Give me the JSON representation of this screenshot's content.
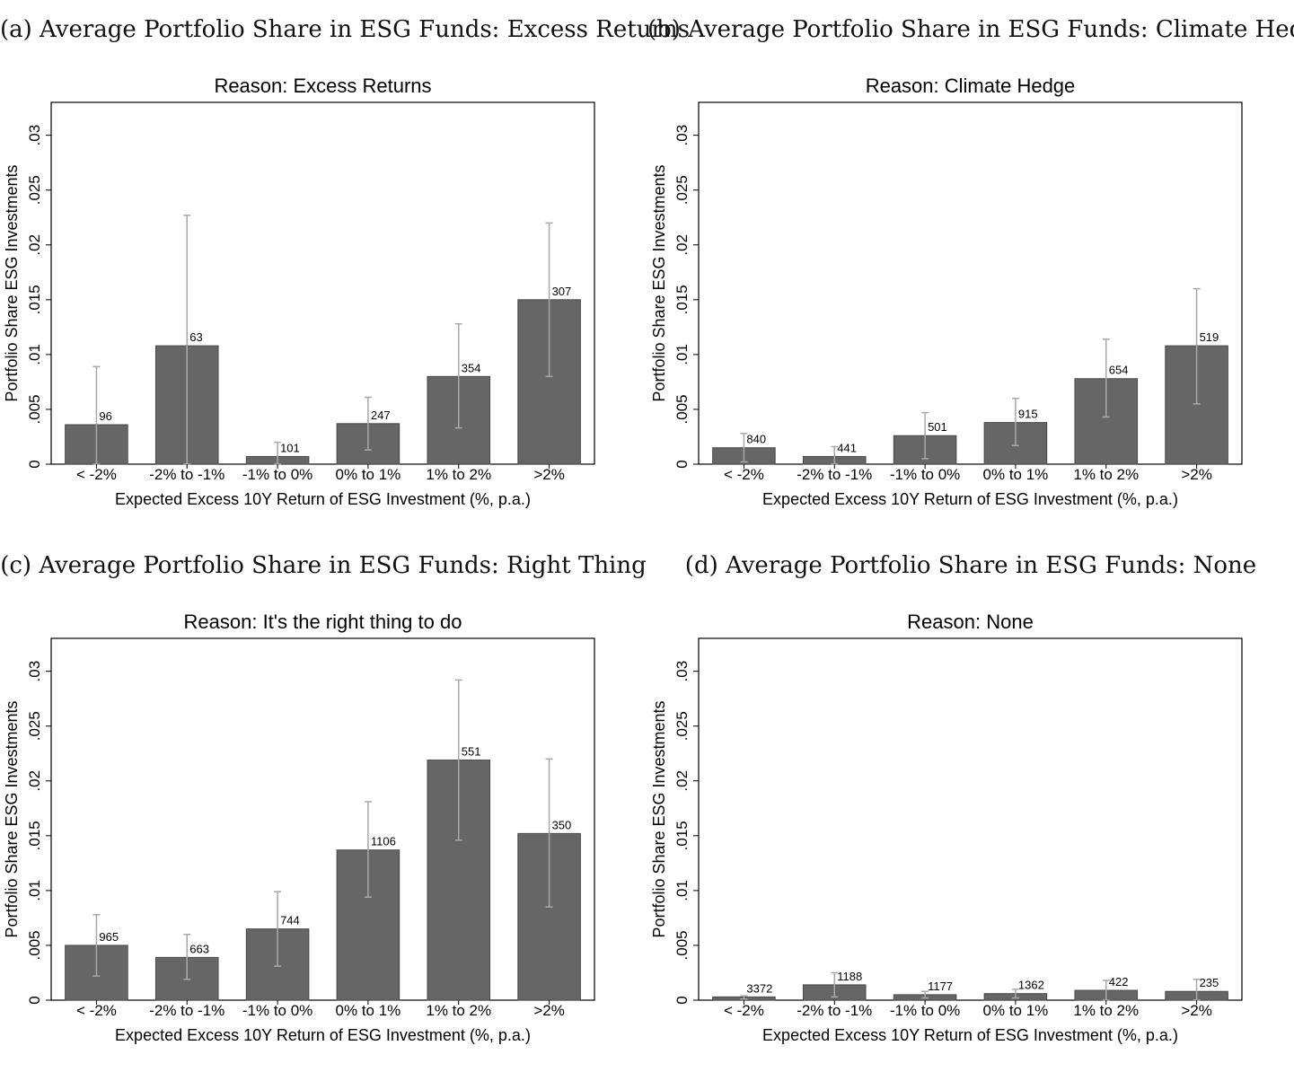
{
  "colors": {
    "bar": "#666666",
    "bar_edge": "#4a4a4a",
    "error_bar": "#a8a8a8",
    "frame": "#000000"
  },
  "chart_data": [
    {
      "type": "bar",
      "caption": "(a)  Average Portfolio Share in ESG Funds: Excess Returns",
      "title": "Reason: Excess Returns",
      "xlabel": "Expected Excess 10Y Return of ESG Investment (%, p.a.)",
      "ylabel": "Portfolio Share ESG Investments",
      "ylim": [
        0,
        0.033
      ],
      "yticks": [
        "0",
        ".005",
        ".01",
        ".015",
        ".02",
        ".025",
        ".03"
      ],
      "ytick_values": [
        0,
        0.005,
        0.01,
        0.015,
        0.02,
        0.025,
        0.03
      ],
      "categories": [
        "< -2%",
        "-2% to -1%",
        "-1% to 0%",
        "0% to 1%",
        "1% to 2%",
        ">2%"
      ],
      "values": [
        0.0036,
        0.0108,
        0.0007,
        0.0037,
        0.008,
        0.015
      ],
      "ci_low": [
        0.0,
        0.0,
        0.0,
        0.0013,
        0.0033,
        0.008
      ],
      "ci_high": [
        0.0089,
        0.0227,
        0.002,
        0.0061,
        0.0128,
        0.022
      ],
      "n_labels": [
        "96",
        "63",
        "101",
        "247",
        "354",
        "307"
      ]
    },
    {
      "type": "bar",
      "caption": "(b)  Average Portfolio Share in ESG Funds: Climate Hedge",
      "title": "Reason: Climate Hedge",
      "xlabel": "Expected Excess 10Y Return of ESG Investment (%, p.a.)",
      "ylabel": "Portfolio Share ESG Investments",
      "ylim": [
        0,
        0.033
      ],
      "yticks": [
        "0",
        ".005",
        ".01",
        ".015",
        ".02",
        ".025",
        ".03"
      ],
      "ytick_values": [
        0,
        0.005,
        0.01,
        0.015,
        0.02,
        0.025,
        0.03
      ],
      "categories": [
        "< -2%",
        "-2% to -1%",
        "-1% to 0%",
        "0% to 1%",
        "1% to 2%",
        ">2%"
      ],
      "values": [
        0.0015,
        0.0007,
        0.0026,
        0.0038,
        0.0078,
        0.0108
      ],
      "ci_low": [
        0.0002,
        0.0,
        0.0005,
        0.0017,
        0.0043,
        0.0055
      ],
      "ci_high": [
        0.0028,
        0.0016,
        0.0047,
        0.006,
        0.0114,
        0.016
      ],
      "n_labels": [
        "840",
        "441",
        "501",
        "915",
        "654",
        "519"
      ]
    },
    {
      "type": "bar",
      "caption": "(c)  Average Portfolio Share in ESG Funds: Right Thing",
      "title": "Reason: It's the right thing to do",
      "xlabel": "Expected Excess 10Y Return of ESG Investment (%, p.a.)",
      "ylabel": "Portfolio Share ESG Investments",
      "ylim": [
        0,
        0.033
      ],
      "yticks": [
        "0",
        ".005",
        ".01",
        ".015",
        ".02",
        ".025",
        ".03"
      ],
      "ytick_values": [
        0,
        0.005,
        0.01,
        0.015,
        0.02,
        0.025,
        0.03
      ],
      "categories": [
        "< -2%",
        "-2% to -1%",
        "-1% to 0%",
        "0% to 1%",
        "1% to 2%",
        ">2%"
      ],
      "values": [
        0.005,
        0.0039,
        0.0065,
        0.0137,
        0.0219,
        0.0152
      ],
      "ci_low": [
        0.0022,
        0.0019,
        0.0031,
        0.0094,
        0.0146,
        0.0085
      ],
      "ci_high": [
        0.0078,
        0.006,
        0.0099,
        0.0181,
        0.0292,
        0.022
      ],
      "n_labels": [
        "965",
        "663",
        "744",
        "1106",
        "551",
        "350"
      ]
    },
    {
      "type": "bar",
      "caption": "(d)  Average Portfolio Share in ESG Funds: None",
      "title": "Reason: None",
      "xlabel": "Expected Excess 10Y Return of ESG Investment (%, p.a.)",
      "ylabel": "Portfolio Share ESG Investments",
      "ylim": [
        0,
        0.033
      ],
      "yticks": [
        "0",
        ".005",
        ".01",
        ".015",
        ".02",
        ".025",
        ".03"
      ],
      "ytick_values": [
        0,
        0.005,
        0.01,
        0.015,
        0.02,
        0.025,
        0.03
      ],
      "categories": [
        "< -2%",
        "-2% to -1%",
        "-1% to 0%",
        "0% to 1%",
        "1% to 2%",
        ">2%"
      ],
      "values": [
        0.0003,
        0.0014,
        0.0005,
        0.0006,
        0.0009,
        0.0008
      ],
      "ci_low": [
        0.0001,
        0.0003,
        0.0002,
        0.0002,
        0.0,
        0.0
      ],
      "ci_high": [
        0.0004,
        0.0025,
        0.0008,
        0.001,
        0.0018,
        0.0019
      ],
      "n_labels": [
        "3372",
        "1188",
        "1177",
        "1362",
        "422",
        "235"
      ]
    }
  ]
}
